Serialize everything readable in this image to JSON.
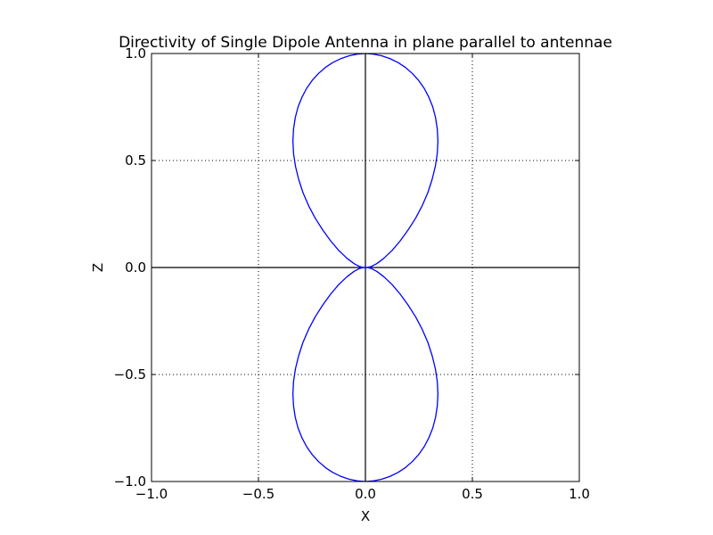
{
  "chart_data": {
    "type": "line",
    "title": "Directivity of Single Dipole Antenna in plane parallel to antennae",
    "xlabel": "X",
    "ylabel": "Z",
    "xlim": [
      -1.0,
      1.0
    ],
    "ylim": [
      -1.0,
      1.0
    ],
    "x_ticks": [
      -1.0,
      -0.5,
      0.0,
      0.5,
      1.0
    ],
    "x_tick_labels": [
      "−1.0",
      "−0.5",
      "0.0",
      "0.5",
      "1.0"
    ],
    "y_ticks": [
      -1.0,
      -0.5,
      0.0,
      0.5,
      1.0
    ],
    "y_tick_labels": [
      "−1.0",
      "−0.5",
      "0.0",
      "0.5",
      "1.0"
    ],
    "grid": true,
    "grid_style": "dotted",
    "reference_lines": {
      "x": 0.0,
      "y": 0.0
    },
    "series": [
      {
        "color": "#0000ff",
        "x": [
          0,
          0.039,
          0.077,
          0.115,
          0.152,
          0.187,
          0.219,
          0.249,
          0.275,
          0.297,
          0.315,
          0.328,
          0.336,
          0.339,
          0.336,
          0.327,
          0.312,
          0.292,
          0.266,
          0.235,
          0.2,
          0.163,
          0.125,
          0.086,
          0.053,
          0.026,
          0.008,
          0,
          0.008,
          0.026,
          0.053,
          0.086,
          0.125,
          0.163,
          0.2,
          0.235,
          0.266,
          0.292,
          0.312,
          0.327,
          0.336,
          0.339,
          0.336,
          0.328,
          0.315,
          0.297,
          0.275,
          0.249,
          0.219,
          0.187,
          0.152,
          0.115,
          0.077,
          0.039,
          0,
          -0.039,
          -0.077,
          -0.115,
          -0.152,
          -0.187,
          -0.219,
          -0.249,
          -0.275,
          -0.297,
          -0.315,
          -0.328,
          -0.336,
          -0.339,
          -0.336,
          -0.327,
          -0.312,
          -0.292,
          -0.266,
          -0.235,
          -0.2,
          -0.163,
          -0.125,
          -0.086,
          -0.053,
          -0.026,
          -0.008,
          0,
          -0.008,
          -0.026,
          -0.053,
          -0.086,
          -0.125,
          -0.163,
          -0.2,
          -0.235,
          -0.266,
          -0.292,
          -0.312,
          -0.327,
          -0.336,
          -0.339,
          -0.336,
          -0.328,
          -0.315,
          -0.297,
          -0.275,
          -0.249,
          -0.219,
          -0.187,
          -0.152,
          -0.115,
          -0.077,
          -0.039,
          0
        ],
        "y": [
          1.0,
          0.997,
          0.989,
          0.976,
          0.958,
          0.935,
          0.907,
          0.874,
          0.837,
          0.795,
          0.75,
          0.7,
          0.647,
          0.591,
          0.533,
          0.473,
          0.412,
          0.35,
          0.29,
          0.231,
          0.176,
          0.125,
          0.08,
          0.043,
          0.018,
          0.004,
          0.0,
          0.0,
          -0.0,
          -0.004,
          -0.018,
          -0.043,
          -0.08,
          -0.125,
          -0.176,
          -0.231,
          -0.29,
          -0.35,
          -0.412,
          -0.473,
          -0.533,
          -0.591,
          -0.647,
          -0.7,
          -0.75,
          -0.795,
          -0.837,
          -0.874,
          -0.907,
          -0.935,
          -0.958,
          -0.976,
          -0.989,
          -0.997,
          -1.0,
          -0.997,
          -0.989,
          -0.976,
          -0.958,
          -0.935,
          -0.907,
          -0.874,
          -0.837,
          -0.795,
          -0.75,
          -0.7,
          -0.647,
          -0.591,
          -0.533,
          -0.473,
          -0.412,
          -0.35,
          -0.29,
          -0.231,
          -0.176,
          -0.125,
          -0.08,
          -0.043,
          -0.018,
          -0.004,
          -0.0,
          0.0,
          0.0,
          0.004,
          0.018,
          0.043,
          0.08,
          0.125,
          0.176,
          0.231,
          0.29,
          0.35,
          0.412,
          0.473,
          0.533,
          0.591,
          0.647,
          0.7,
          0.75,
          0.795,
          0.837,
          0.874,
          0.907,
          0.935,
          0.958,
          0.976,
          0.989,
          0.997,
          1.0
        ]
      }
    ]
  }
}
